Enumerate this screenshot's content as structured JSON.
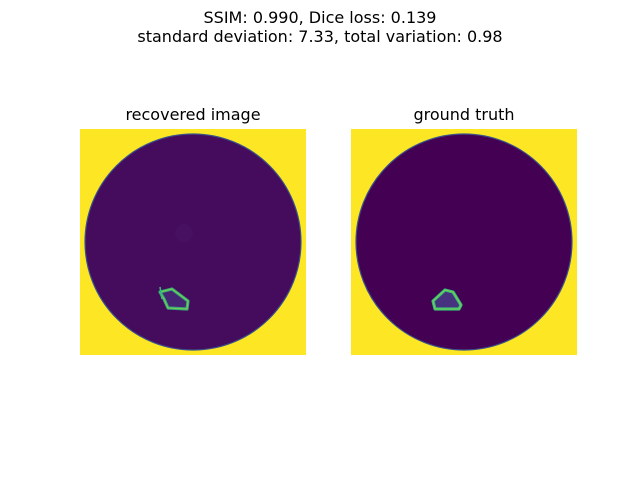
{
  "figure": {
    "suptitle_line1": "SSIM: 0.990, Dice loss: 0.139",
    "suptitle_line2": "standard deviation: 7.33, total variation: 0.98"
  },
  "panels": [
    {
      "title": "recovered image",
      "colors": {
        "background": "#fde725",
        "disk": "#450c5e",
        "disk_edge": "#3b528b",
        "inclusion_ring": "#35b779",
        "inclusion_highlight": "#6ece58",
        "inclusion_fill": "#482878"
      }
    },
    {
      "title": "ground truth",
      "colors": {
        "background": "#fde725",
        "disk": "#440154",
        "disk_edge": "#3b528b",
        "inclusion_ring": "#35b779",
        "inclusion_highlight": "#6ece58",
        "inclusion_fill": "#46327e"
      }
    }
  ]
}
